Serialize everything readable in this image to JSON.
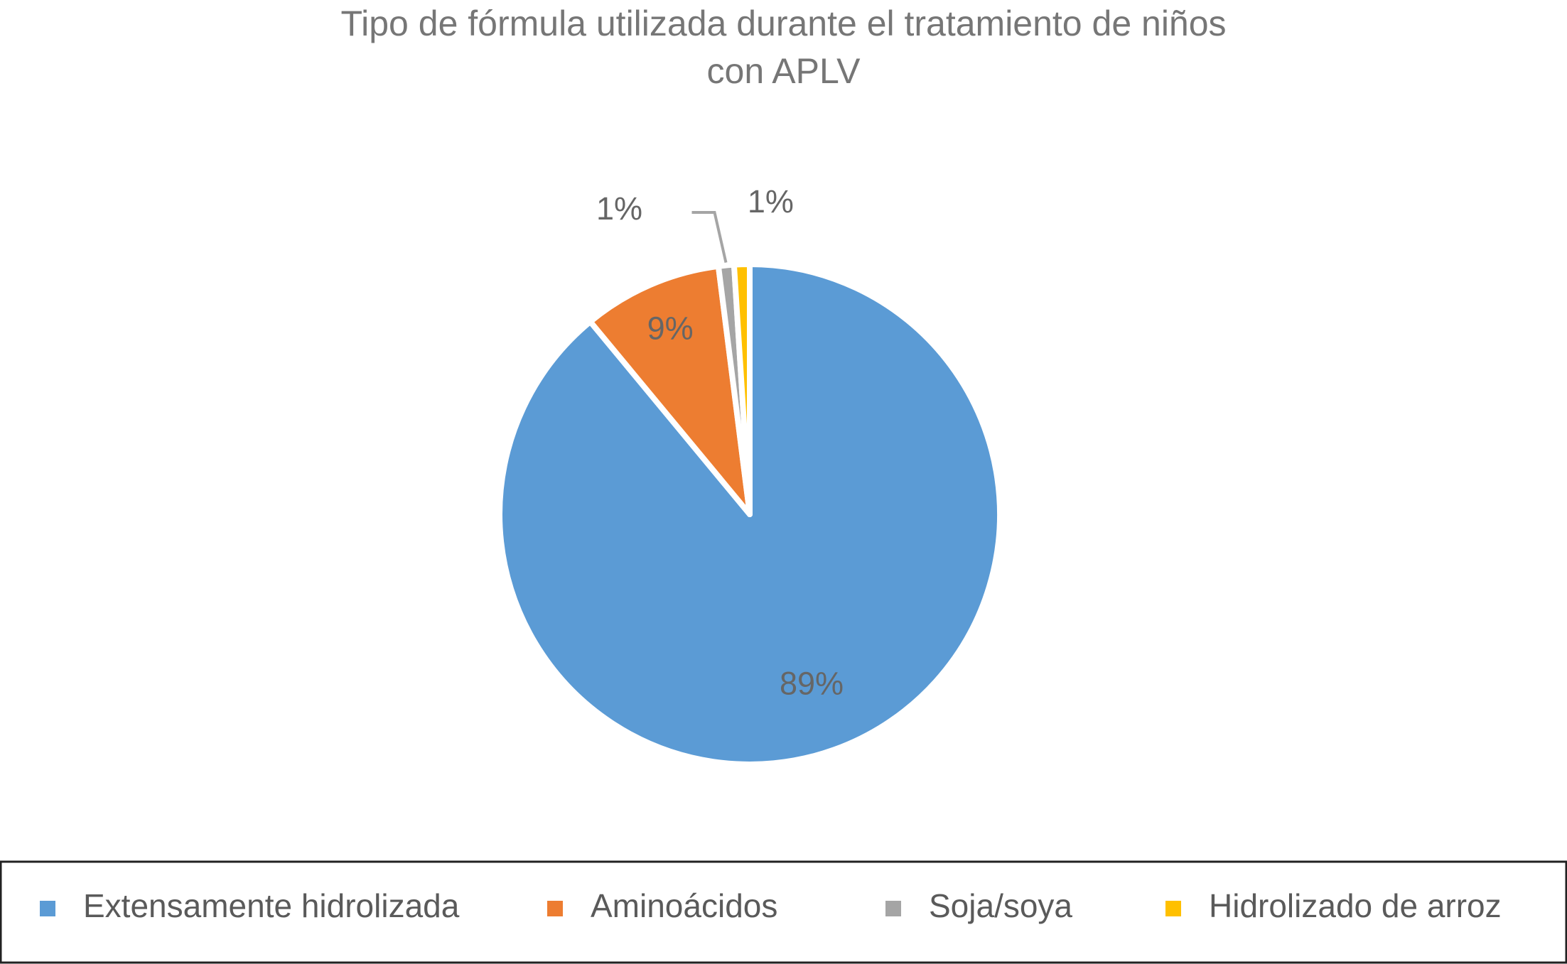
{
  "chart_data": {
    "type": "pie",
    "title": "Tipo de fórmula utilizada durante el tratamiento de niños con APLV",
    "categories": [
      "Extensamente hidrolizada",
      "Aminoácidos",
      "Soja/soya",
      "Hidrolizado de arroz"
    ],
    "values": [
      89,
      9,
      1,
      1
    ],
    "value_labels": [
      "89%",
      "9%",
      "1%",
      "1%"
    ],
    "colors": [
      "#5b9bd5",
      "#ed7d31",
      "#a5a5a5",
      "#ffc000"
    ],
    "legend": "bottom"
  }
}
